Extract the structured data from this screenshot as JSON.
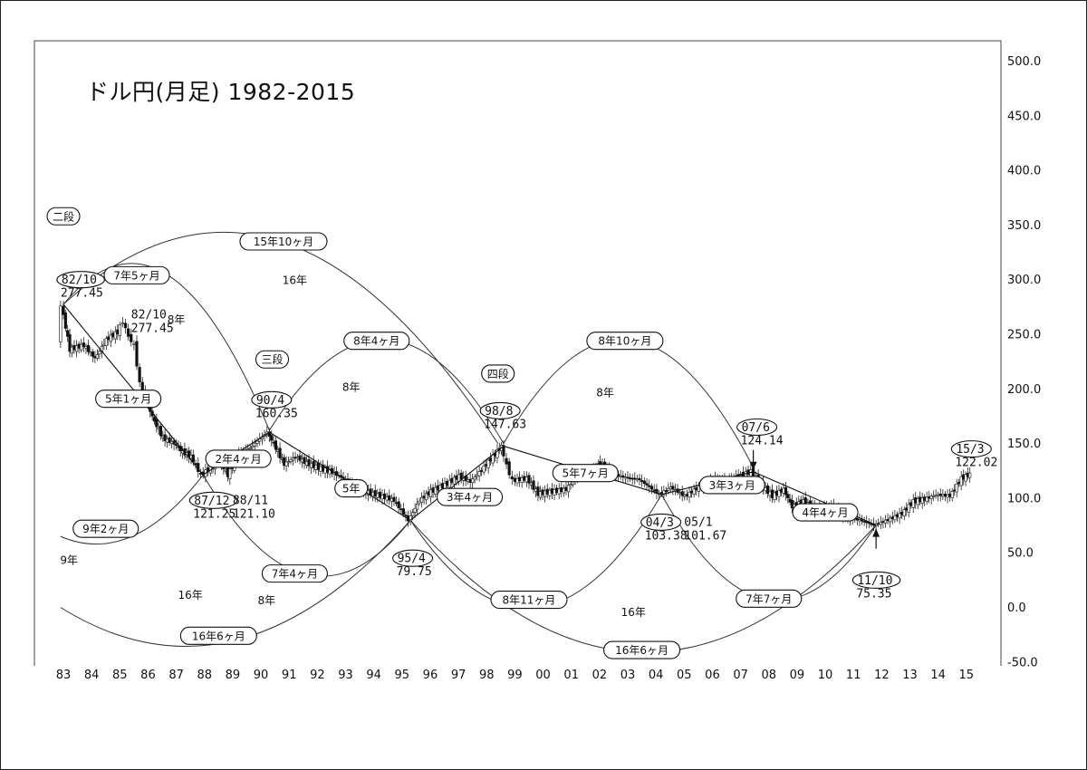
{
  "chart_data": {
    "type": "candlestick",
    "title": "ドル円(月足) 1982-2015",
    "ylim": [
      -50,
      500
    ],
    "yticks": [
      500,
      450,
      400,
      350,
      300,
      250,
      200,
      150,
      100,
      50,
      0,
      -50
    ],
    "ytick_labels": [
      "500.0",
      "450.0",
      "400.0",
      "350.0",
      "300.0",
      "250.0",
      "200.0",
      "150.0",
      "100.0",
      "50.0",
      "0.0",
      "-50.0"
    ],
    "xtick_labels": [
      "83",
      "84",
      "85",
      "86",
      "87",
      "88",
      "89",
      "90",
      "91",
      "92",
      "93",
      "94",
      "95",
      "96",
      "97",
      "98",
      "99",
      "00",
      "01",
      "02",
      "03",
      "04",
      "05",
      "06",
      "07",
      "08",
      "09",
      "10",
      "11",
      "12",
      "13",
      "14",
      "15"
    ],
    "xrange": [
      1982.9,
      2015.2
    ],
    "price_path": [
      [
        1982.9,
        240
      ],
      [
        1983.0,
        277.45
      ],
      [
        1983.3,
        236
      ],
      [
        1983.8,
        240
      ],
      [
        1984.2,
        228
      ],
      [
        1984.6,
        245
      ],
      [
        1985.0,
        252
      ],
      [
        1985.2,
        262
      ],
      [
        1985.4,
        248
      ],
      [
        1985.6,
        240
      ],
      [
        1985.8,
        205
      ],
      [
        1986.0,
        190
      ],
      [
        1986.3,
        170
      ],
      [
        1986.6,
        155
      ],
      [
        1987.0,
        150
      ],
      [
        1987.3,
        142
      ],
      [
        1987.6,
        138
      ],
      [
        1987.95,
        121.25
      ],
      [
        1988.3,
        128
      ],
      [
        1988.6,
        134
      ],
      [
        1988.9,
        121.1
      ],
      [
        1989.3,
        140
      ],
      [
        1989.7,
        146
      ],
      [
        1990.3,
        160.35
      ],
      [
        1990.6,
        146
      ],
      [
        1990.9,
        131
      ],
      [
        1991.3,
        138
      ],
      [
        1991.7,
        132
      ],
      [
        1992.2,
        127
      ],
      [
        1992.6,
        124
      ],
      [
        1993.0,
        118
      ],
      [
        1993.4,
        110
      ],
      [
        1993.8,
        106
      ],
      [
        1994.3,
        102
      ],
      [
        1994.8,
        98
      ],
      [
        1995.3,
        79.75
      ],
      [
        1995.7,
        98
      ],
      [
        1996.1,
        106
      ],
      [
        1996.6,
        112
      ],
      [
        1997.1,
        120
      ],
      [
        1997.5,
        115
      ],
      [
        1997.9,
        126
      ],
      [
        1998.3,
        138
      ],
      [
        1998.6,
        147.63
      ],
      [
        1998.8,
        130
      ],
      [
        1999.0,
        116
      ],
      [
        1999.5,
        118
      ],
      [
        1999.9,
        104
      ],
      [
        2000.4,
        106
      ],
      [
        2000.9,
        108
      ],
      [
        2001.3,
        122
      ],
      [
        2001.8,
        124
      ],
      [
        2002.1,
        132
      ],
      [
        2002.5,
        122
      ],
      [
        2003.0,
        119
      ],
      [
        2003.5,
        117
      ],
      [
        2004.2,
        103.38
      ],
      [
        2004.6,
        110
      ],
      [
        2005.1,
        101.67
      ],
      [
        2005.6,
        110
      ],
      [
        2006.1,
        116
      ],
      [
        2006.6,
        114
      ],
      [
        2007.0,
        120
      ],
      [
        2007.45,
        124.14
      ],
      [
        2007.8,
        112
      ],
      [
        2008.2,
        102
      ],
      [
        2008.6,
        108
      ],
      [
        2008.9,
        92
      ],
      [
        2009.3,
        97
      ],
      [
        2009.8,
        89
      ],
      [
        2010.3,
        92
      ],
      [
        2010.8,
        82
      ],
      [
        2011.3,
        80
      ],
      [
        2011.8,
        75.35
      ],
      [
        2012.3,
        80
      ],
      [
        2012.8,
        86
      ],
      [
        2013.2,
        97
      ],
      [
        2013.6,
        99
      ],
      [
        2014.0,
        103
      ],
      [
        2014.5,
        102
      ],
      [
        2014.9,
        118
      ],
      [
        2015.2,
        122.02
      ]
    ],
    "trend_lines": [
      [
        [
          1983.0,
          277.45
        ],
        [
          1987.95,
          121.25
        ]
      ],
      [
        [
          1987.95,
          121.25
        ],
        [
          1990.3,
          160.35
        ]
      ],
      [
        [
          1990.3,
          160.35
        ],
        [
          1995.3,
          79.75
        ]
      ],
      [
        [
          1995.3,
          79.75
        ],
        [
          1998.6,
          147.63
        ]
      ],
      [
        [
          1998.6,
          147.63
        ],
        [
          2004.2,
          103.38
        ]
      ],
      [
        [
          2004.2,
          103.38
        ],
        [
          2007.45,
          124.14
        ]
      ],
      [
        [
          2007.45,
          124.14
        ],
        [
          2011.8,
          75.35
        ]
      ]
    ],
    "arcs": [
      {
        "from": [
          1983.0,
          277.45
        ],
        "to": [
          1998.4,
          150
        ],
        "peak_y": 335,
        "label": "15年10ヶ月",
        "label_at": [
          1990.8,
          335
        ]
      },
      {
        "from": [
          1983.0,
          277.45
        ],
        "to": [
          1990.3,
          162
        ],
        "peak_y": 305,
        "label": "7年5ヶ月",
        "label_at": [
          1985.6,
          304
        ]
      },
      {
        "from": [
          1990.3,
          162
        ],
        "to": [
          1998.6,
          150
        ],
        "peak_y": 245,
        "label": "8年4ヶ月",
        "label_at": [
          1994.1,
          244
        ]
      },
      {
        "from": [
          1998.6,
          150
        ],
        "to": [
          2007.45,
          128
        ],
        "peak_y": 245,
        "label": "8年10ヶ月",
        "label_at": [
          2002.9,
          244
        ]
      },
      {
        "from": [
          1987.95,
          121.25
        ],
        "to": [
          1982.9,
          65
        ],
        "peak_y": 65,
        "label": "9年2ヶ月",
        "label_at": [
          1984.5,
          72
        ]
      },
      {
        "from": [
          1987.95,
          121.25
        ],
        "to": [
          1995.3,
          79.75
        ],
        "peak_y": 30,
        "label": "7年4ヶ月",
        "label_at": [
          1991.2,
          31
        ]
      },
      {
        "from": [
          1995.3,
          79.75
        ],
        "to": [
          2004.2,
          103.38
        ],
        "peak_y": 0,
        "label": "8年11ヶ月",
        "label_at": [
          1999.5,
          7
        ]
      },
      {
        "from": [
          2004.2,
          103.38
        ],
        "to": [
          2011.8,
          75.35
        ],
        "peak_y": 7,
        "label": "7年7ヶ月",
        "label_at": [
          2008.0,
          8
        ]
      },
      {
        "from": [
          1982.9,
          0
        ],
        "to": [
          1995.3,
          79.75
        ],
        "peak_y": -30,
        "label": "16年6ヶ月",
        "label_at": [
          1988.5,
          -26
        ]
      },
      {
        "from": [
          1995.3,
          79.75
        ],
        "to": [
          2011.8,
          75.35
        ],
        "peak_y": -41,
        "label": "16年6ヶ月",
        "label_at": [
          2003.5,
          -39
        ]
      }
    ],
    "pivots": [
      {
        "date": "82/10",
        "value": "277.45",
        "at": [
          1983.0,
          277.45
        ],
        "label_at": [
          1982.9,
          300
        ]
      },
      {
        "date": "82/10",
        "value": "277.45",
        "at": [
          1983.0,
          277.45
        ],
        "label_at": [
          1985.4,
          268
        ],
        "boxed": false
      },
      {
        "date": "90/4",
        "value": "160.35",
        "at": [
          1990.3,
          160.35
        ],
        "label_at": [
          1989.8,
          190
        ]
      },
      {
        "date": "87/12",
        "value": "121.25",
        "at": [
          1987.95,
          121.25
        ],
        "label_at": [
          1987.6,
          98
        ]
      },
      {
        "date": "88/11",
        "value": "121.10",
        "at": [
          1988.9,
          121.1
        ],
        "label_at": [
          1989.0,
          98
        ],
        "boxed": false
      },
      {
        "date": "95/4",
        "value": "79.75",
        "at": [
          1995.3,
          79.75
        ],
        "label_at": [
          1994.8,
          45
        ]
      },
      {
        "date": "98/8",
        "value": "147.63",
        "at": [
          1998.6,
          147.63
        ],
        "label_at": [
          1997.9,
          180
        ]
      },
      {
        "date": "04/3",
        "value": "103.38",
        "at": [
          2004.2,
          103.38
        ],
        "label_at": [
          2003.6,
          78
        ]
      },
      {
        "date": "05/1",
        "value": "101.67",
        "at": [
          2005.1,
          101.67
        ],
        "label_at": [
          2005.0,
          78
        ],
        "boxed": false
      },
      {
        "date": "07/6",
        "value": "124.14",
        "at": [
          2007.45,
          124.14
        ],
        "label_at": [
          2007.0,
          165
        ]
      },
      {
        "date": "11/10",
        "value": "75.35",
        "at": [
          2011.8,
          75.35
        ],
        "label_at": [
          2011.1,
          25
        ]
      },
      {
        "date": "15/3",
        "value": "122.02",
        "at": [
          2015.2,
          122.02
        ],
        "label_at": [
          2014.6,
          145
        ]
      }
    ],
    "segment_labels": [
      {
        "text": "5年1ヶ月",
        "at": [
          1985.3,
          191
        ]
      },
      {
        "text": "2年4ヶ月",
        "at": [
          1989.2,
          136
        ]
      },
      {
        "text": "5年",
        "at": [
          1993.2,
          109
        ]
      },
      {
        "text": "3年4ヶ月",
        "at": [
          1997.4,
          101
        ]
      },
      {
        "text": "5年7ヶ月",
        "at": [
          2001.5,
          123
        ]
      },
      {
        "text": "3年3ヶ月",
        "at": [
          2006.7,
          112
        ]
      },
      {
        "text": "4年4ヶ月",
        "at": [
          2010.0,
          87
        ]
      }
    ],
    "stage_labels": [
      {
        "text": "二段",
        "at": [
          1983.0,
          358
        ]
      },
      {
        "text": "三段",
        "at": [
          1990.4,
          227
        ]
      },
      {
        "text": "四段",
        "at": [
          1998.4,
          214
        ]
      }
    ],
    "duration_notes": [
      {
        "text": "16年",
        "at": [
          1991.2,
          296
        ]
      },
      {
        "text": "8年",
        "at": [
          1987.0,
          260
        ]
      },
      {
        "text": "8年",
        "at": [
          1993.2,
          198
        ]
      },
      {
        "text": "8年",
        "at": [
          2002.2,
          193
        ]
      },
      {
        "text": "9年",
        "at": [
          1983.2,
          40
        ]
      },
      {
        "text": "16年",
        "at": [
          1987.5,
          8
        ]
      },
      {
        "text": "8年",
        "at": [
          1990.2,
          3
        ]
      },
      {
        "text": "16年",
        "at": [
          2003.2,
          -8
        ]
      }
    ]
  }
}
